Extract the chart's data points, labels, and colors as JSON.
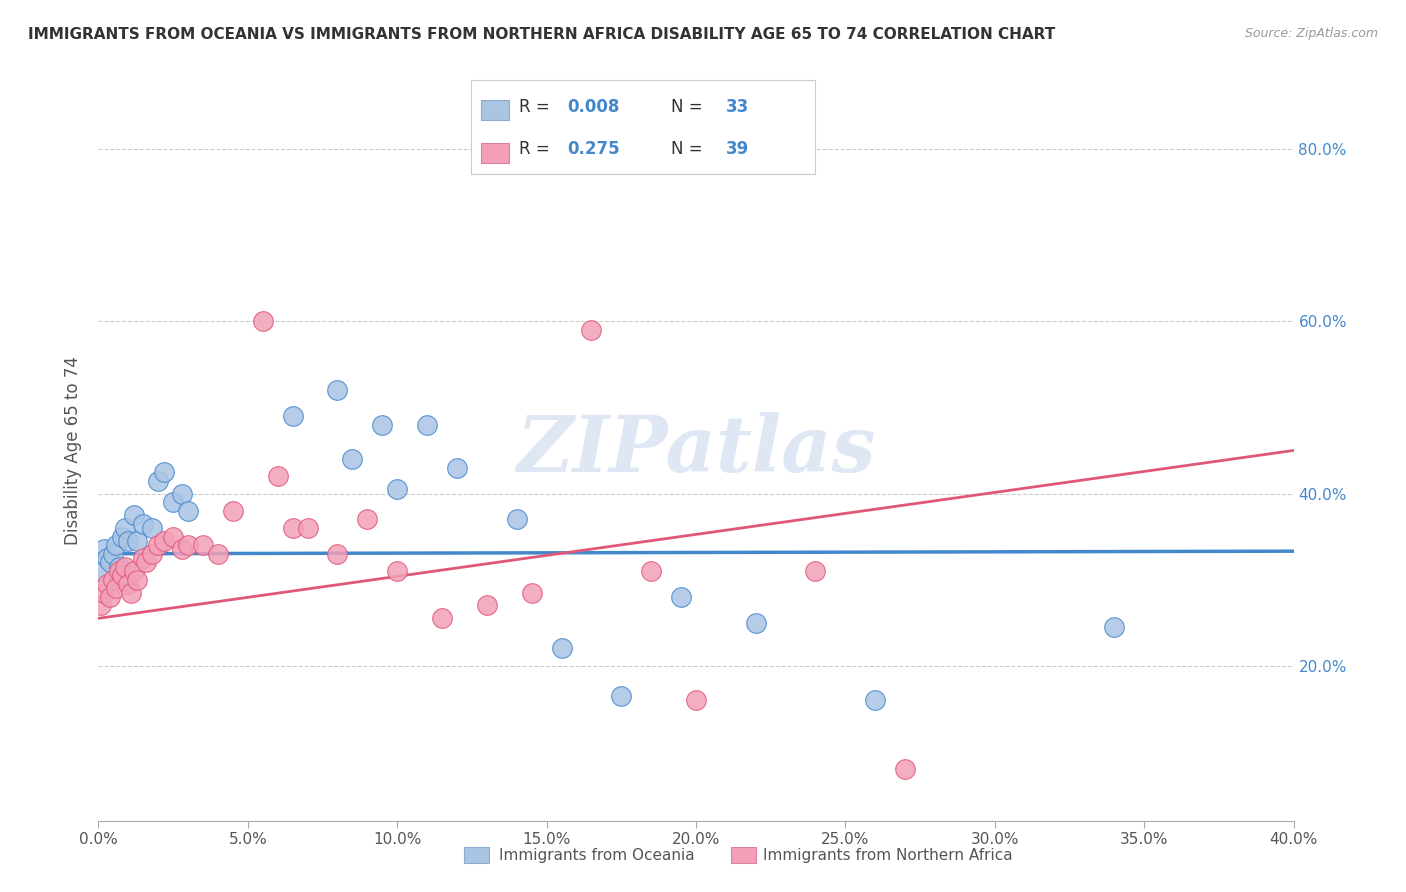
{
  "title": "IMMIGRANTS FROM OCEANIA VS IMMIGRANTS FROM NORTHERN AFRICA DISABILITY AGE 65 TO 74 CORRELATION CHART",
  "source": "Source: ZipAtlas.com",
  "ylabel": "Disability Age 65 to 74",
  "legend_label1": "Immigrants from Oceania",
  "legend_label2": "Immigrants from Northern Africa",
  "R1": "0.008",
  "N1": "33",
  "R2": "0.275",
  "N2": "39",
  "xlim": [
    0.0,
    0.4
  ],
  "ylim": [
    0.02,
    0.88
  ],
  "yticks": [
    0.2,
    0.4,
    0.6,
    0.8
  ],
  "xticks": [
    0.0,
    0.05,
    0.1,
    0.15,
    0.2,
    0.25,
    0.3,
    0.35,
    0.4
  ],
  "color_blue": "#aac4e4",
  "color_pink": "#f2a0b8",
  "color_blue_dark": "#4488cc",
  "color_pink_dark": "#e05878",
  "color_blue_text": "#4488cc",
  "watermark": "ZIPatlas",
  "blue_scatter_x": [
    0.001,
    0.002,
    0.003,
    0.004,
    0.005,
    0.006,
    0.007,
    0.008,
    0.009,
    0.01,
    0.012,
    0.013,
    0.015,
    0.018,
    0.02,
    0.022,
    0.025,
    0.028,
    0.03,
    0.065,
    0.08,
    0.085,
    0.095,
    0.1,
    0.11,
    0.12,
    0.14,
    0.155,
    0.175,
    0.195,
    0.22,
    0.26,
    0.34
  ],
  "blue_scatter_y": [
    0.31,
    0.335,
    0.325,
    0.32,
    0.33,
    0.34,
    0.315,
    0.35,
    0.36,
    0.345,
    0.375,
    0.345,
    0.365,
    0.36,
    0.415,
    0.425,
    0.39,
    0.4,
    0.38,
    0.49,
    0.52,
    0.44,
    0.48,
    0.405,
    0.48,
    0.43,
    0.37,
    0.22,
    0.165,
    0.28,
    0.25,
    0.16,
    0.245
  ],
  "pink_scatter_x": [
    0.001,
    0.002,
    0.003,
    0.004,
    0.005,
    0.006,
    0.007,
    0.008,
    0.009,
    0.01,
    0.011,
    0.012,
    0.013,
    0.015,
    0.016,
    0.018,
    0.02,
    0.022,
    0.025,
    0.028,
    0.03,
    0.035,
    0.04,
    0.045,
    0.055,
    0.06,
    0.065,
    0.07,
    0.08,
    0.09,
    0.1,
    0.115,
    0.13,
    0.145,
    0.165,
    0.185,
    0.2,
    0.24,
    0.27
  ],
  "pink_scatter_y": [
    0.27,
    0.285,
    0.295,
    0.28,
    0.3,
    0.29,
    0.31,
    0.305,
    0.315,
    0.295,
    0.285,
    0.31,
    0.3,
    0.325,
    0.32,
    0.33,
    0.34,
    0.345,
    0.35,
    0.335,
    0.34,
    0.34,
    0.33,
    0.38,
    0.6,
    0.42,
    0.36,
    0.36,
    0.33,
    0.37,
    0.31,
    0.255,
    0.27,
    0.285,
    0.59,
    0.31,
    0.16,
    0.31,
    0.08
  ],
  "blue_trend_x": [
    0.0,
    0.4
  ],
  "blue_trend_y": [
    0.33,
    0.333
  ],
  "pink_trend_x": [
    0.0,
    0.4
  ],
  "pink_trend_y": [
    0.255,
    0.45
  ]
}
